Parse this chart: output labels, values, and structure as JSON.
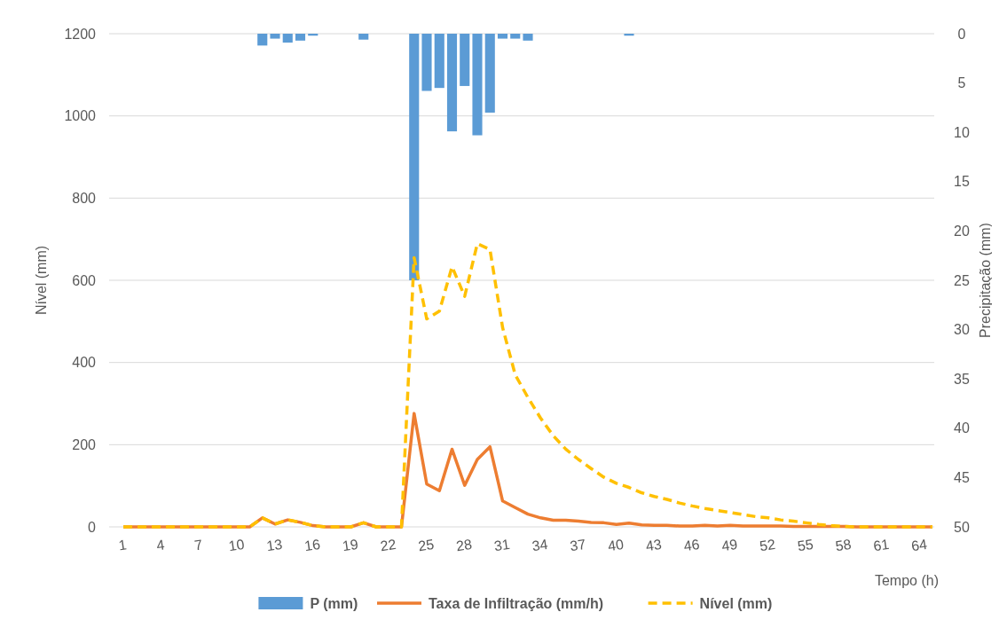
{
  "chart_data": {
    "type": "line",
    "xlabel": "Tempo (h)",
    "ylabel": "Nível (mm)",
    "y2label": "Precipitação (mm)",
    "categories": [
      "1",
      null,
      null,
      "4",
      null,
      null,
      "7",
      null,
      null,
      "10",
      null,
      null,
      "13",
      null,
      null,
      "16",
      null,
      null,
      "19",
      null,
      null,
      "22",
      null,
      null,
      "25",
      null,
      null,
      "28",
      null,
      null,
      "31",
      null,
      null,
      "34",
      null,
      null,
      "37",
      null,
      null,
      "40",
      null,
      null,
      "43",
      null,
      null,
      "46",
      null,
      null,
      "49",
      null,
      null,
      "52",
      null,
      null,
      "55",
      null,
      null,
      "58",
      null,
      null,
      "61",
      null,
      null,
      "64",
      null
    ],
    "ylim": [
      0,
      1200
    ],
    "yticks": [
      0,
      200,
      400,
      600,
      800,
      1000,
      1200
    ],
    "y2lim": [
      50,
      0
    ],
    "y2ticks": [
      0,
      5,
      10,
      15,
      20,
      25,
      30,
      35,
      40,
      45,
      50
    ],
    "grid": "y",
    "legend": "bottom",
    "series": [
      {
        "name": "P (mm)",
        "type": "bar",
        "axis": "y2",
        "color": "#5b9bd5",
        "values": [
          0,
          0,
          0,
          0,
          0,
          0,
          0,
          0,
          0,
          0,
          0,
          1.2,
          0.5,
          0.9,
          0.7,
          0.2,
          0,
          0,
          0,
          0.6,
          0,
          0,
          0,
          25,
          5.8,
          5.5,
          9.9,
          5.3,
          10.3,
          8.0,
          0.5,
          0.5,
          0.7,
          0,
          0,
          0,
          0,
          0,
          0,
          0,
          0.2,
          0,
          0,
          0,
          0,
          0,
          0,
          0,
          0,
          0,
          0,
          0,
          0,
          0,
          0,
          0,
          0,
          0,
          0,
          0,
          0,
          0,
          0,
          0,
          0
        ]
      },
      {
        "name": "Taxa de Infiltração (mm/h)",
        "color": "#ed7d31",
        "line_style": "solid",
        "values": [
          0,
          0,
          0,
          0,
          0,
          0,
          0,
          0,
          0,
          0,
          0,
          22,
          7,
          17,
          11,
          3,
          0,
          0,
          0,
          10,
          0,
          0,
          0,
          276,
          104,
          88,
          189,
          101,
          164,
          195,
          63,
          47,
          31,
          22,
          16,
          16,
          14,
          11,
          10,
          6,
          9,
          5,
          4,
          4,
          2,
          2,
          4,
          2,
          4,
          2,
          2,
          2,
          2,
          1,
          1,
          1,
          1,
          1,
          0,
          0,
          0,
          0,
          0,
          0,
          0
        ]
      },
      {
        "name": "Nível (mm)",
        "color": "#ffc000",
        "line_style": "dashed",
        "values": [
          0,
          0,
          0,
          0,
          0,
          0,
          0,
          0,
          0,
          0,
          0,
          22,
          7,
          17,
          11,
          3,
          0,
          0,
          0,
          10,
          0,
          0,
          0,
          655,
          506,
          525,
          633,
          561,
          689,
          675,
          485,
          370,
          315,
          265,
          222,
          189,
          164,
          142,
          121,
          106,
          96,
          83,
          74,
          67,
          58,
          51,
          45,
          40,
          35,
          30,
          25,
          22,
          17,
          14,
          10,
          6,
          3,
          1,
          0,
          0,
          0,
          0,
          0,
          0,
          0
        ]
      }
    ]
  }
}
